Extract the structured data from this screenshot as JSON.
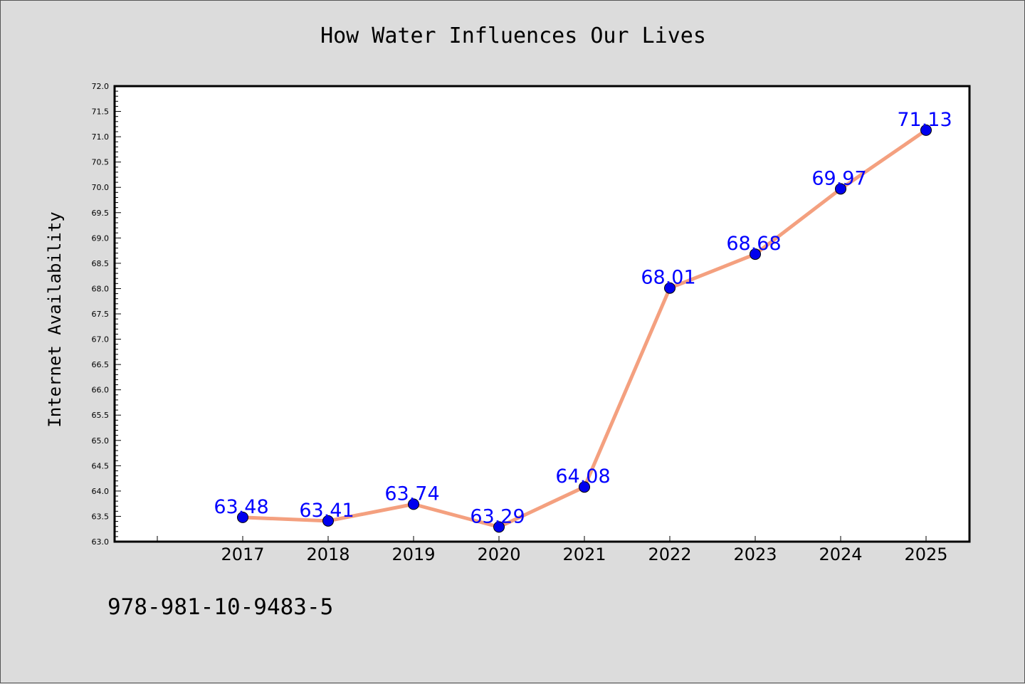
{
  "chart_data": {
    "type": "line",
    "title": "How Water Influences Our Lives",
    "xlabel": "",
    "ylabel": "Internet Availability",
    "x": [
      "2017",
      "2018",
      "2019",
      "2020",
      "2021",
      "2022",
      "2023",
      "2024",
      "2025"
    ],
    "series": [
      {
        "values": [
          63.48,
          63.41,
          63.74,
          63.29,
          64.08,
          68.01,
          68.68,
          69.97,
          71.13
        ]
      }
    ],
    "data_labels": [
      "63.48",
      "63.41",
      "63.74",
      "63.29",
      "64.08",
      "68.01",
      "68.68",
      "69.97",
      "71.13"
    ],
    "ylim": [
      63.0,
      72.0
    ],
    "yticks": [
      "63.0",
      "63.5",
      "64.0",
      "64.5",
      "65.0",
      "65.5",
      "66.0",
      "66.5",
      "67.0",
      "67.5",
      "68.0",
      "68.5",
      "69.0",
      "69.5",
      "70.0",
      "70.5",
      "71.0",
      "71.5",
      "72.0"
    ],
    "grid": false,
    "colors": {
      "line": "#f4a07f",
      "marker": "#0000ee",
      "label": "#0000ff",
      "background": "#dcdcdc",
      "plot_background": "#ffffff"
    }
  },
  "footer": {
    "code": "978-981-10-9483-5"
  }
}
